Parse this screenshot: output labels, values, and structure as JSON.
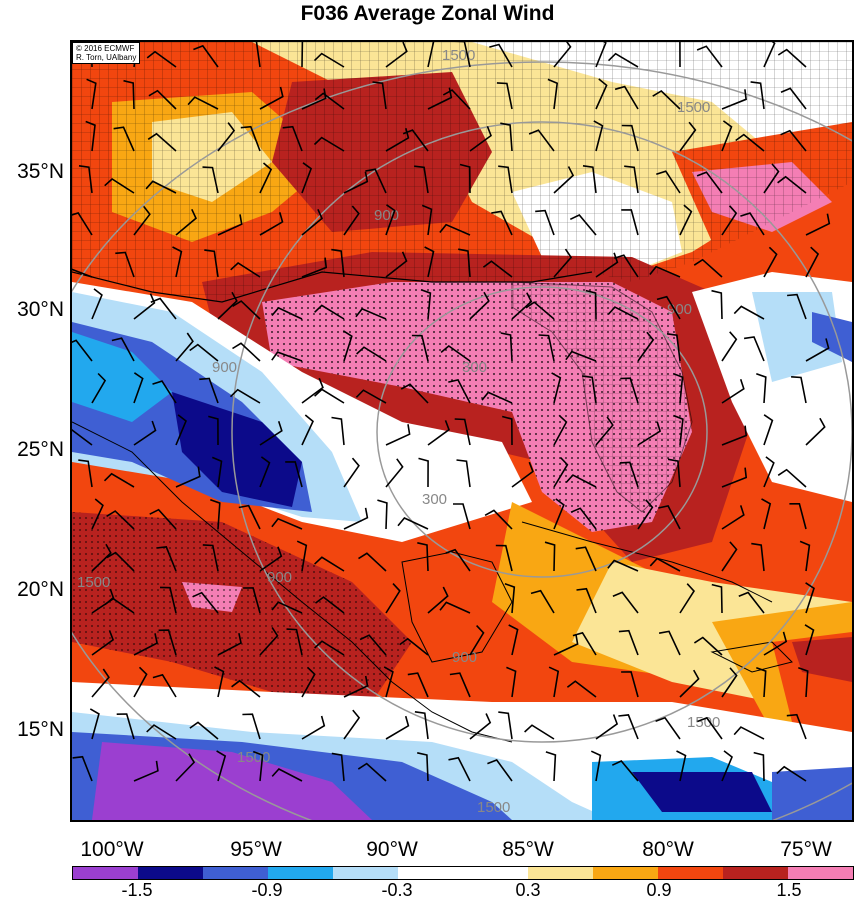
{
  "title": "F036 Average Zonal Wind",
  "credit": {
    "line1": "© 2016 ECMWF",
    "line2": "R. Torn, UAlbany"
  },
  "latitudes": [
    "35°N",
    "30°N",
    "25°N",
    "20°N",
    "15°N"
  ],
  "longitudes": [
    "100°W",
    "95°W",
    "90°W",
    "85°W",
    "80°W",
    "75°W"
  ],
  "colorbar": {
    "colors": [
      "#9b3fd0",
      "#0c0a8a",
      "#3f5fd3",
      "#22a8ee",
      "#b5def8",
      "#ffffff",
      "#ffffff",
      "#fbe596",
      "#f9a713",
      "#f2460f",
      "#b8221f",
      "#f47eb4"
    ],
    "labels": [
      "-1.5",
      "-0.9",
      "-0.3",
      "0.3",
      "0.9",
      "1.5"
    ]
  },
  "contour_labels": [
    "300",
    "300",
    "900",
    "900",
    "900",
    "900",
    "900",
    "1500",
    "1500",
    "1500",
    "1500",
    "1500",
    "1500"
  ],
  "legend_scale": {
    "min": -1.8,
    "max": 1.8,
    "step": 0.3
  }
}
